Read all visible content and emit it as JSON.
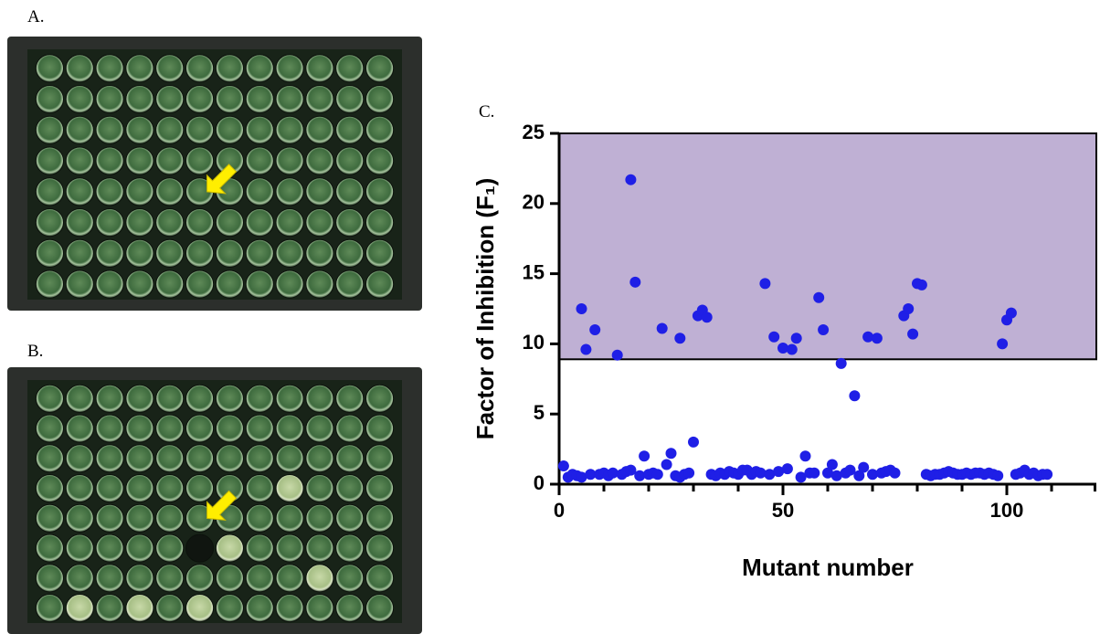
{
  "panels": {
    "a": "A.",
    "b": "B.",
    "c": "C."
  },
  "chart_data": {
    "type": "scatter",
    "xlabel": "Mutant number",
    "ylabel": "Factor of Inhibition (F₁)",
    "xlim": [
      0,
      120
    ],
    "xticks": [
      0,
      50,
      100
    ],
    "xminorticks": [
      10,
      20,
      30,
      40,
      60,
      70,
      80,
      90,
      110,
      120
    ],
    "ylim": [
      0,
      25
    ],
    "yticks": [
      0,
      5,
      10,
      15,
      20,
      25
    ],
    "threshold": 8.9,
    "band_color": "#bfb0d4",
    "color": "#1f1fe6",
    "x": [
      5,
      6,
      8,
      13,
      16,
      17,
      23,
      27,
      31,
      32,
      33,
      46,
      48,
      50,
      52,
      53,
      58,
      59,
      63,
      66,
      69,
      71,
      77,
      78,
      79,
      80,
      81,
      99,
      100,
      101,
      1,
      2,
      3,
      4,
      5,
      7,
      9,
      10,
      11,
      12,
      14,
      15,
      16,
      18,
      19,
      20,
      21,
      22,
      24,
      25,
      26,
      27,
      28,
      29,
      30,
      34,
      35,
      36,
      37,
      38,
      39,
      40,
      41,
      42,
      43,
      44,
      45,
      47,
      49,
      51,
      54,
      55,
      56,
      57,
      60,
      61,
      62,
      64,
      65,
      67,
      68,
      70,
      72,
      73,
      74,
      75,
      82,
      83,
      84,
      85,
      86,
      87,
      88,
      89,
      90,
      91,
      92,
      93,
      94,
      95,
      96,
      97,
      98,
      102,
      103,
      104,
      105,
      106,
      107,
      108,
      109
    ],
    "values": [
      12.5,
      9.6,
      11.0,
      9.2,
      21.7,
      14.4,
      11.1,
      10.4,
      12.0,
      12.4,
      11.9,
      14.3,
      10.5,
      9.7,
      9.6,
      10.4,
      13.3,
      11.0,
      8.6,
      6.3,
      10.5,
      10.4,
      12.0,
      12.5,
      10.7,
      14.3,
      14.2,
      10.0,
      11.7,
      12.2,
      1.3,
      0.5,
      0.7,
      0.6,
      0.5,
      0.7,
      0.7,
      0.8,
      0.6,
      0.8,
      0.7,
      0.9,
      1.0,
      0.6,
      2.0,
      0.7,
      0.8,
      0.7,
      1.4,
      2.2,
      0.6,
      0.5,
      0.7,
      0.8,
      3.0,
      0.7,
      0.6,
      0.8,
      0.7,
      0.9,
      0.8,
      0.7,
      1.0,
      1.0,
      0.7,
      0.9,
      0.8,
      0.7,
      0.9,
      1.1,
      0.5,
      2.0,
      0.8,
      0.8,
      0.8,
      1.4,
      0.6,
      0.8,
      1.0,
      0.6,
      1.2,
      0.7,
      0.8,
      0.9,
      1.0,
      0.8,
      0.7,
      0.6,
      0.7,
      0.7,
      0.8,
      0.9,
      0.8,
      0.7,
      0.7,
      0.8,
      0.7,
      0.8,
      0.8,
      0.7,
      0.8,
      0.7,
      0.6,
      0.7,
      0.8,
      1.0,
      0.7,
      0.8,
      0.6,
      0.7,
      0.7
    ]
  }
}
